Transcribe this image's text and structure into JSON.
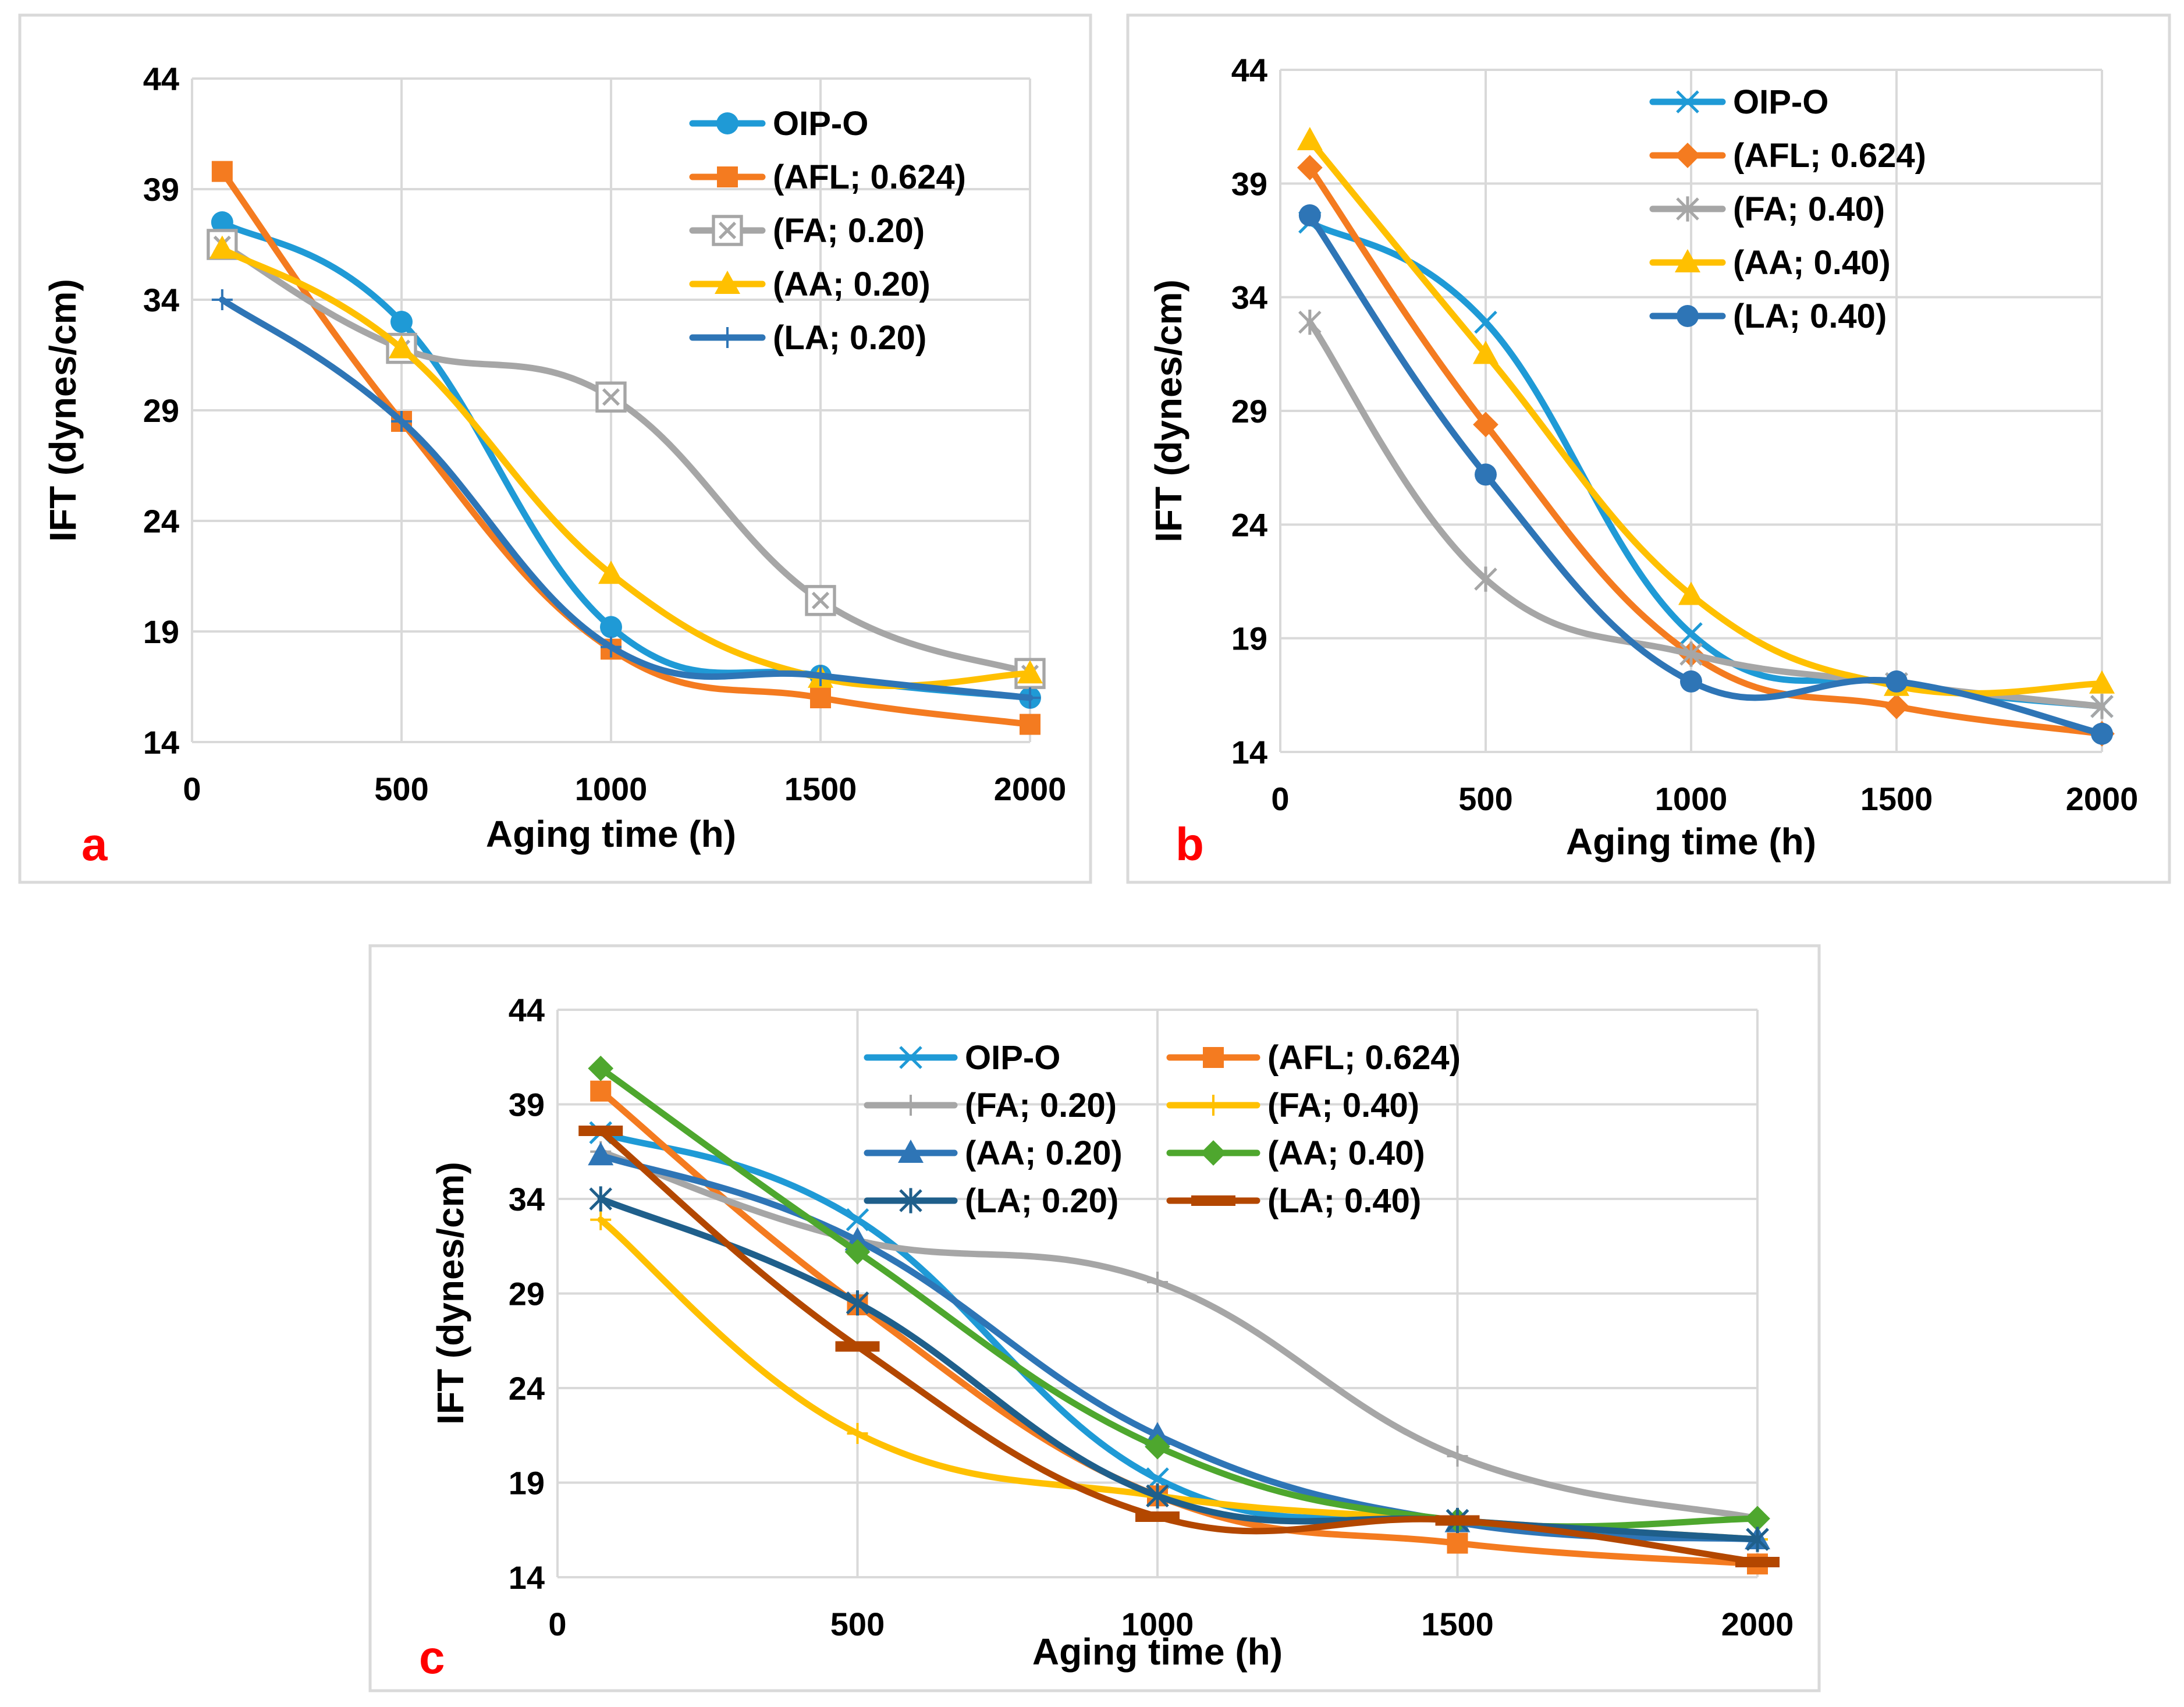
{
  "chart_data": [
    {
      "panel": "a",
      "type": "line",
      "title": "",
      "xlabel": "Aging time (h)",
      "ylabel": "IFT (dynes/cm)",
      "xlim": [
        0,
        2000
      ],
      "ylim": [
        14,
        44
      ],
      "xticks": [
        0,
        500,
        1000,
        1500,
        2000
      ],
      "yticks": [
        14,
        19,
        24,
        29,
        34,
        39,
        44
      ],
      "grid": true,
      "legend_position": "top-right",
      "x": [
        72,
        500,
        1000,
        1500,
        2000
      ],
      "series": [
        {
          "name": "OIP-O",
          "color": "#1f9ad6",
          "marker": "circle",
          "values": [
            37.5,
            33.0,
            19.2,
            17.0,
            16.0
          ]
        },
        {
          "name": "(AFL; 0.624)",
          "color": "#f47b20",
          "marker": "square",
          "values": [
            39.8,
            28.5,
            18.2,
            16.0,
            14.8
          ]
        },
        {
          "name": "(FA; 0.20)",
          "color": "#a6a6a6",
          "marker": "boxx",
          "values": [
            36.5,
            31.8,
            29.6,
            20.4,
            17.1
          ]
        },
        {
          "name": "(AA; 0.20)",
          "color": "#ffc000",
          "marker": "triangle",
          "values": [
            36.3,
            31.8,
            21.6,
            16.9,
            17.1
          ]
        },
        {
          "name": "(LA; 0.20)",
          "color": "#2e75b6",
          "marker": "plus",
          "values": [
            34.0,
            28.5,
            18.3,
            17.0,
            16.0
          ]
        }
      ]
    },
    {
      "panel": "b",
      "type": "line",
      "title": "",
      "xlabel": "Aging time (h)",
      "ylabel": "IFT (dynes/cm)",
      "xlim": [
        0,
        2000
      ],
      "ylim": [
        14,
        44
      ],
      "xticks": [
        0,
        500,
        1000,
        1500,
        2000
      ],
      "yticks": [
        14,
        19,
        24,
        29,
        34,
        39,
        44
      ],
      "grid": true,
      "legend_position": "top-center",
      "x": [
        72,
        500,
        1000,
        1500,
        2000
      ],
      "series": [
        {
          "name": "OIP-O",
          "color": "#1f9ad6",
          "marker": "x",
          "values": [
            37.3,
            32.9,
            19.2,
            17.0,
            16.0
          ]
        },
        {
          "name": "(AFL; 0.624)",
          "color": "#f47b20",
          "marker": "diamond",
          "values": [
            39.7,
            28.4,
            18.3,
            16.0,
            14.8
          ]
        },
        {
          "name": "(FA; 0.40)",
          "color": "#a6a6a6",
          "marker": "asterisk",
          "values": [
            32.9,
            21.6,
            18.3,
            17.0,
            16.0
          ]
        },
        {
          "name": "(AA; 0.40)",
          "color": "#ffc000",
          "marker": "triangle",
          "values": [
            40.9,
            31.5,
            20.9,
            16.9,
            17.0
          ]
        },
        {
          "name": "(LA; 0.40)",
          "color": "#2e75b6",
          "marker": "circle",
          "values": [
            37.6,
            26.2,
            17.1,
            17.1,
            14.8
          ]
        }
      ]
    },
    {
      "panel": "c",
      "type": "line",
      "title": "",
      "xlabel": "Aging time (h)",
      "ylabel": "IFT (dynes/cm)",
      "xlim": [
        0,
        2000
      ],
      "ylim": [
        14,
        44
      ],
      "xticks": [
        0,
        500,
        1000,
        1500,
        2000
      ],
      "yticks": [
        14,
        19,
        24,
        29,
        34,
        39,
        44
      ],
      "grid": true,
      "legend_position": "top-center",
      "x": [
        72,
        500,
        1000,
        1500,
        2000
      ],
      "series": [
        {
          "name": "OIP-O",
          "color": "#1f9ad6",
          "marker": "x",
          "values": [
            37.5,
            32.9,
            19.2,
            17.0,
            16.0
          ]
        },
        {
          "name": "(AFL; 0.624)",
          "color": "#f47b20",
          "marker": "square",
          "values": [
            39.7,
            28.4,
            18.3,
            15.8,
            14.7
          ]
        },
        {
          "name": "(FA; 0.20)",
          "color": "#a6a6a6",
          "marker": "plus",
          "values": [
            36.5,
            31.8,
            29.6,
            20.4,
            17.1
          ]
        },
        {
          "name": "(FA; 0.40)",
          "color": "#ffc000",
          "marker": "plus",
          "values": [
            32.9,
            21.6,
            18.3,
            17.0,
            16.0
          ]
        },
        {
          "name": "(AA; 0.20)",
          "color": "#2e75b6",
          "marker": "triangle",
          "values": [
            36.3,
            31.8,
            21.5,
            16.9,
            16.0
          ]
        },
        {
          "name": "(AA; 0.40)",
          "color": "#4ea72e",
          "marker": "diamond",
          "values": [
            40.9,
            31.2,
            20.9,
            17.0,
            17.1
          ]
        },
        {
          "name": "(LA; 0.20)",
          "color": "#1f5f8b",
          "marker": "asterisk",
          "values": [
            34.0,
            28.5,
            18.3,
            17.0,
            16.0
          ]
        },
        {
          "name": "(LA; 0.40)",
          "color": "#b34700",
          "marker": "dash",
          "values": [
            37.6,
            26.2,
            17.2,
            17.0,
            14.8
          ]
        }
      ]
    }
  ]
}
